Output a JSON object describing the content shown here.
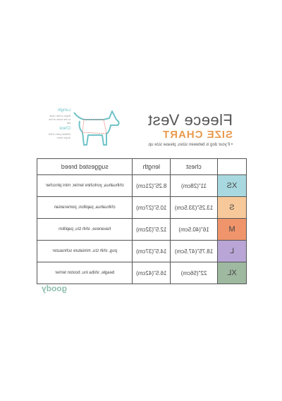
{
  "header": {
    "title": "Fleece Vest",
    "subtitle": "SIZE CHART",
    "note": "• if your dog is between sizes, please size up."
  },
  "diagram": {
    "length_label": "Length",
    "length_desc": "Base of the neck to the base of the tail",
    "chest_label": "Chest",
    "chest_desc": "Widest part of the dog's torso"
  },
  "table": {
    "columns": [
      "chest",
      "length",
      "suggested breed"
    ],
    "rows": [
      {
        "size": "XS",
        "chest": "11\"(28cm)",
        "length": "8.25\"(21cm)",
        "breed": "chihuahua, yorkshire terrier, mini pinscher",
        "color": "#a9d9e0"
      },
      {
        "size": "S",
        "chest": "13.25\"(33.5cm)",
        "length": "10.5\"(27cm)",
        "breed": "chihuahua, papillon, pomeranian",
        "color": "#f7c99a"
      },
      {
        "size": "M",
        "chest": "16\"(40.5cm)",
        "length": "12.5\"(32cm)",
        "breed": "havanese, shih tzu, papillon",
        "color": "#f0956b"
      },
      {
        "size": "L",
        "chest": "18.75\"(47.5cm)",
        "length": "14.5\"(37cm)",
        "breed": "pug, shih tzu, miniature schnauzer",
        "color": "#b9a6d6"
      },
      {
        "size": "XL",
        "chest": "22\"(56cm)",
        "length": "16.5\"(42cm)",
        "breed": "beagle, shiba inu, boston terrier",
        "color": "#9fb8a0"
      }
    ]
  },
  "footer": {
    "logo": "goody"
  }
}
